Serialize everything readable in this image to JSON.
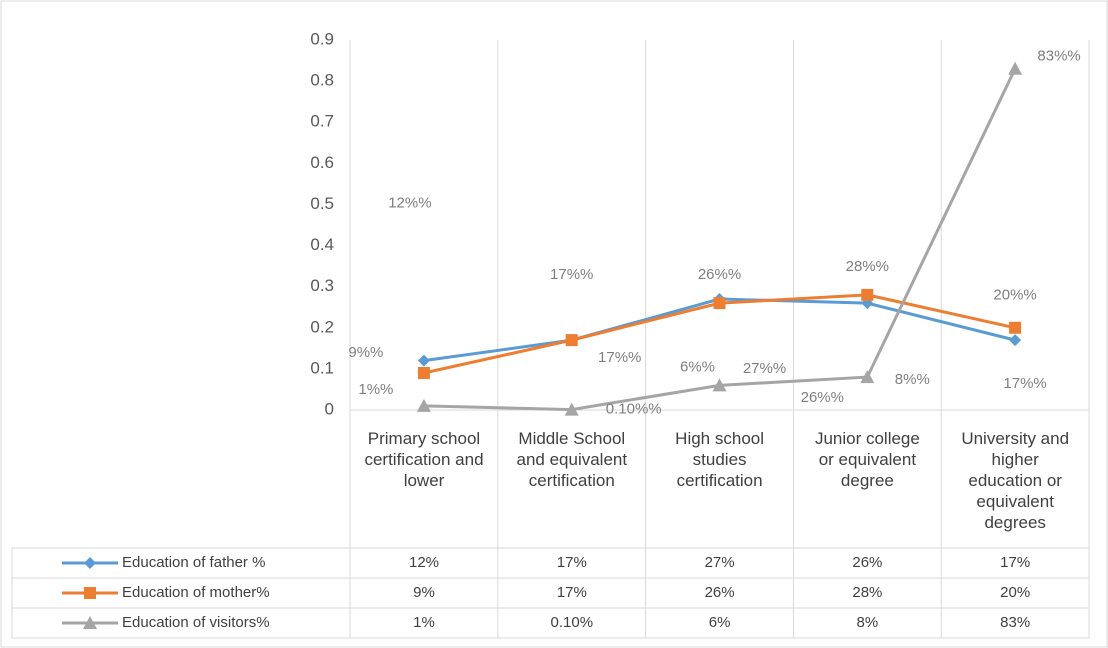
{
  "chart_data": {
    "type": "line",
    "categories": [
      "Primary school certification and lower",
      "Middle School and equivalent certification",
      "High school studies certification",
      "Junior college or equivalent degree",
      "University and higher education or equivalent degrees"
    ],
    "ylim": [
      0,
      0.9
    ],
    "yticks": [
      0,
      0.1,
      0.2,
      0.3,
      0.4,
      0.5,
      0.6,
      0.7,
      0.8,
      0.9
    ],
    "grid": false,
    "series": [
      {
        "name": "Education of father %",
        "color": "#5b9bd5",
        "marker": "diamond",
        "values": [
          0.12,
          0.17,
          0.27,
          0.26,
          0.17
        ],
        "value_labels": [
          "12%%",
          "17%%",
          "27%%",
          "26%%",
          "17%%"
        ],
        "table_labels": [
          "12%",
          "17%",
          "27%",
          "26%",
          "17%"
        ]
      },
      {
        "name": "Education of mother%",
        "color": "#ed7d31",
        "marker": "square",
        "values": [
          0.09,
          0.17,
          0.26,
          0.28,
          0.2
        ],
        "value_labels": [
          "9%%",
          "17%%",
          "26%%",
          "28%%",
          "20%%"
        ],
        "table_labels": [
          "9%",
          "17%",
          "26%",
          "28%",
          "20%"
        ]
      },
      {
        "name": "Education of visitors%",
        "color": "#a5a5a5",
        "marker": "triangle",
        "values": [
          0.01,
          0.001,
          0.06,
          0.08,
          0.83
        ],
        "value_labels": [
          "1%%",
          "0.10%%",
          "6%%",
          "8%%",
          "83%%"
        ],
        "table_labels": [
          "1%",
          "0.10%",
          "6%",
          "8%",
          "83%"
        ]
      }
    ]
  }
}
